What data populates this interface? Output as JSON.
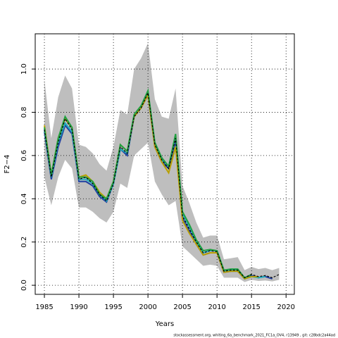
{
  "chart_data": {
    "type": "line",
    "xlabel": "Years",
    "ylabel": "F2−4",
    "footer": "stockassessment.org, whiting_6a_benchmark_2021_FC1a_OV4, r13949 , git: c28bdc2a44ad",
    "x": [
      1985,
      1986,
      1987,
      1988,
      1989,
      1990,
      1991,
      1992,
      1993,
      1994,
      1995,
      1996,
      1997,
      1998,
      1999,
      2000,
      2001,
      2002,
      2003,
      2004,
      2005,
      2006,
      2007,
      2008,
      2009,
      2010,
      2011,
      2012,
      2013,
      2014,
      2015,
      2016,
      2017,
      2018,
      2019
    ],
    "band_color": "#bebebe",
    "band_upper": [
      0.95,
      0.68,
      0.87,
      0.97,
      0.91,
      0.65,
      0.64,
      0.61,
      0.56,
      0.53,
      0.64,
      0.81,
      0.79,
      1.0,
      1.05,
      1.12,
      0.86,
      0.78,
      0.77,
      0.91,
      0.46,
      0.38,
      0.29,
      0.22,
      0.23,
      0.23,
      0.12,
      0.125,
      0.13,
      0.07,
      0.085,
      0.075,
      0.08,
      0.07,
      0.08
    ],
    "band_lower": [
      0.5,
      0.37,
      0.5,
      0.58,
      0.54,
      0.36,
      0.36,
      0.34,
      0.31,
      0.29,
      0.34,
      0.47,
      0.45,
      0.6,
      0.63,
      0.66,
      0.48,
      0.42,
      0.37,
      0.39,
      0.18,
      0.15,
      0.12,
      0.09,
      0.095,
      0.09,
      0.035,
      0.035,
      0.035,
      0.015,
      0.025,
      0.02,
      0.022,
      0.018,
      0.025
    ],
    "series": [
      {
        "color": "#1f3fa0",
        "values": [
          0.71,
          0.49,
          0.64,
          0.74,
          0.7,
          0.48,
          0.48,
          0.46,
          0.41,
          0.385,
          0.47,
          0.63,
          0.6,
          0.78,
          0.82,
          0.88,
          0.64,
          0.57,
          0.54,
          0.67,
          0.31,
          0.25,
          0.19,
          0.14,
          0.15,
          0.15,
          0.06,
          0.065,
          0.065,
          0.03,
          0.045,
          0.035,
          0.04,
          0.03,
          null
        ]
      },
      {
        "color": "#20b0c0",
        "values": [
          0.72,
          0.5,
          0.66,
          0.75,
          0.71,
          0.49,
          0.49,
          0.47,
          0.42,
          0.39,
          0.47,
          0.63,
          0.61,
          0.78,
          0.82,
          0.89,
          0.65,
          0.58,
          0.55,
          0.69,
          0.33,
          0.27,
          0.2,
          0.15,
          0.16,
          0.16,
          0.065,
          0.07,
          0.07,
          0.03,
          0.04,
          0.035,
          0.04,
          null,
          null
        ]
      },
      {
        "color": "#b8a000",
        "values": [
          0.74,
          0.51,
          0.68,
          0.77,
          0.73,
          0.5,
          0.51,
          0.48,
          0.43,
          0.4,
          0.48,
          0.65,
          0.62,
          0.78,
          0.82,
          0.88,
          0.64,
          0.57,
          0.52,
          0.64,
          0.3,
          0.24,
          0.19,
          0.14,
          0.15,
          0.15,
          0.06,
          0.065,
          0.065,
          0.03,
          0.04,
          0.04,
          null,
          null,
          null
        ]
      },
      {
        "color": "#20a040",
        "values": [
          0.73,
          0.51,
          0.68,
          0.78,
          0.73,
          0.5,
          0.5,
          0.48,
          0.42,
          0.4,
          0.48,
          0.65,
          0.62,
          0.79,
          0.83,
          0.9,
          0.66,
          0.59,
          0.55,
          0.7,
          0.34,
          0.28,
          0.21,
          0.16,
          0.165,
          0.16,
          0.07,
          0.075,
          0.075,
          0.035,
          0.05,
          null,
          null,
          null,
          null
        ]
      },
      {
        "color": "#000000",
        "dashed": true,
        "values": [
          0.72,
          0.5,
          0.66,
          0.77,
          0.72,
          0.49,
          0.5,
          0.47,
          0.42,
          0.39,
          0.47,
          0.64,
          0.61,
          0.78,
          0.82,
          0.89,
          0.65,
          0.58,
          0.54,
          0.68,
          0.32,
          0.26,
          0.2,
          0.15,
          0.16,
          0.155,
          0.065,
          0.07,
          0.07,
          0.035,
          0.05,
          0.04,
          0.045,
          0.035,
          0.05
        ]
      }
    ],
    "xlim": [
      1983.67,
      2021.2
    ],
    "ylim": [
      -0.042,
      1.163
    ],
    "xticks": [
      1985,
      1990,
      1995,
      2000,
      2005,
      2010,
      2015,
      2020
    ],
    "yticks": [
      {
        "value": 0,
        "label": "0.0"
      },
      {
        "value": 0.2,
        "label": "0.2"
      },
      {
        "value": 0.4,
        "label": "0.4"
      },
      {
        "value": 0.6,
        "label": "0.6"
      },
      {
        "value": 0.8,
        "label": "0.8"
      },
      {
        "value": 1,
        "label": "1.0"
      }
    ],
    "grid": true
  }
}
